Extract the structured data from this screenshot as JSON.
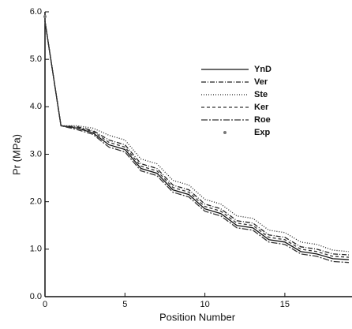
{
  "chart_data": {
    "type": "line",
    "ylabel": "Pr (MPa)",
    "xlabel": "Position Number",
    "x": [
      0,
      1,
      2,
      3,
      4,
      5,
      6,
      7,
      8,
      9,
      10,
      11,
      12,
      13,
      14,
      15,
      16,
      17,
      18,
      19
    ],
    "xlim": [
      0,
      19.2
    ],
    "xticks": [
      0,
      5,
      10,
      15
    ],
    "ylim": [
      0,
      6
    ],
    "yticks": [
      {
        "value": 0,
        "label": "0.0"
      },
      {
        "value": 1,
        "label": "1.0"
      },
      {
        "value": 2,
        "label": "2.0"
      },
      {
        "value": 3,
        "label": "3.0"
      },
      {
        "value": 4,
        "label": "4.0"
      },
      {
        "value": 5,
        "label": "5.0"
      },
      {
        "value": 6,
        "label": "6.0"
      }
    ],
    "legend": "upper-right",
    "series": [
      {
        "name": "YnD",
        "color": "#111111",
        "dash": "none",
        "values": [
          5.8,
          3.6,
          3.55,
          3.45,
          3.2,
          3.1,
          2.7,
          2.6,
          2.25,
          2.15,
          1.85,
          1.75,
          1.5,
          1.45,
          1.2,
          1.15,
          0.95,
          0.9,
          0.8,
          0.78
        ]
      },
      {
        "name": "Ver",
        "color": "#222222",
        "dash": "6 2 1 2",
        "values": [
          5.8,
          3.6,
          3.58,
          3.5,
          3.3,
          3.2,
          2.8,
          2.7,
          2.35,
          2.25,
          1.95,
          1.85,
          1.6,
          1.55,
          1.3,
          1.25,
          1.05,
          1.0,
          0.9,
          0.88
        ]
      },
      {
        "name": "Ste",
        "color": "#222222",
        "dash": "1 2",
        "values": [
          5.8,
          3.6,
          3.6,
          3.55,
          3.4,
          3.3,
          2.9,
          2.8,
          2.45,
          2.35,
          2.05,
          1.95,
          1.7,
          1.65,
          1.4,
          1.35,
          1.15,
          1.1,
          0.98,
          0.95
        ]
      },
      {
        "name": "Ker",
        "color": "#333333",
        "dash": "4 3",
        "values": [
          5.8,
          3.6,
          3.56,
          3.48,
          3.25,
          3.15,
          2.75,
          2.65,
          2.3,
          2.2,
          1.9,
          1.8,
          1.55,
          1.5,
          1.25,
          1.2,
          1.0,
          0.95,
          0.85,
          0.83
        ]
      },
      {
        "name": "Roe",
        "color": "#333333",
        "dash": "8 2 2 2",
        "values": [
          5.8,
          3.6,
          3.52,
          3.42,
          3.15,
          3.05,
          2.65,
          2.55,
          2.2,
          2.1,
          1.8,
          1.7,
          1.45,
          1.4,
          1.15,
          1.1,
          0.9,
          0.85,
          0.74,
          0.72
        ]
      },
      {
        "name": "Exp",
        "color": "#777777",
        "dash": "marker",
        "values": [
          5.9,
          null,
          null,
          null,
          null,
          null,
          null,
          null,
          null,
          null,
          null,
          null,
          null,
          null,
          null,
          null,
          null,
          null,
          null,
          null
        ]
      }
    ]
  }
}
